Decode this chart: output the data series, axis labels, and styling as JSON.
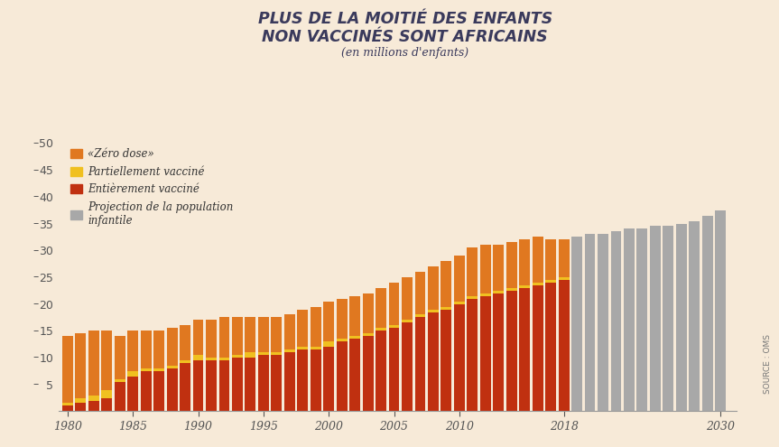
{
  "title_line1": "PLUS DE LA MOITIÉ DES ENFANTS",
  "title_line2": "NON VACCINÉS SONT AFRICAINS",
  "subtitle": "(en millions d'enfants)",
  "source": "SOURCE : OMS",
  "background_color": "#f7ead8",
  "years_historical": [
    1980,
    1981,
    1982,
    1983,
    1984,
    1985,
    1986,
    1987,
    1988,
    1989,
    1990,
    1991,
    1992,
    1993,
    1994,
    1995,
    1996,
    1997,
    1998,
    1999,
    2000,
    2001,
    2002,
    2003,
    2004,
    2005,
    2006,
    2007,
    2008,
    2009,
    2010,
    2011,
    2012,
    2013,
    2014,
    2015,
    2016,
    2017,
    2018
  ],
  "years_projection": [
    2019,
    2020,
    2021,
    2022,
    2023,
    2024,
    2025,
    2026,
    2027,
    2028,
    2029,
    2030
  ],
  "fully_vaccinated": [
    1.0,
    1.5,
    2.0,
    2.5,
    5.5,
    6.5,
    7.5,
    7.5,
    8.0,
    9.0,
    9.5,
    9.5,
    9.5,
    10.0,
    10.0,
    10.5,
    10.5,
    11.0,
    11.5,
    11.5,
    12.0,
    13.0,
    13.5,
    14.0,
    15.0,
    15.5,
    16.5,
    17.5,
    18.5,
    19.0,
    20.0,
    21.0,
    21.5,
    22.0,
    22.5,
    23.0,
    23.5,
    24.0,
    24.5
  ],
  "partially_vaccinated": [
    0.5,
    1.0,
    1.0,
    1.5,
    0.5,
    1.0,
    0.5,
    0.5,
    0.5,
    0.5,
    1.0,
    0.5,
    0.5,
    0.5,
    1.0,
    0.5,
    0.5,
    0.5,
    0.5,
    0.5,
    1.0,
    0.5,
    0.5,
    0.5,
    0.5,
    0.5,
    0.5,
    0.5,
    0.5,
    0.5,
    0.5,
    0.5,
    0.5,
    0.5,
    0.5,
    0.5,
    0.5,
    0.5,
    0.5
  ],
  "zero_dose": [
    12.5,
    12.0,
    12.0,
    11.0,
    8.0,
    7.5,
    7.0,
    7.0,
    7.0,
    6.5,
    6.5,
    7.0,
    7.5,
    7.0,
    6.5,
    6.5,
    6.5,
    6.5,
    7.0,
    7.5,
    7.5,
    7.5,
    7.5,
    7.5,
    7.5,
    8.0,
    8.0,
    8.0,
    8.0,
    8.5,
    8.5,
    9.0,
    9.0,
    8.5,
    8.5,
    8.5,
    8.5,
    7.5,
    7.0
  ],
  "projection_values": [
    32.5,
    33.0,
    33.0,
    33.5,
    34.0,
    34.0,
    34.5,
    34.5,
    35.0,
    35.5,
    36.5,
    37.5
  ],
  "color_zero_dose": "#E07820",
  "color_partially": "#F0C020",
  "color_fully": "#C03010",
  "color_projection": "#A8A8A8",
  "ylim": [
    0,
    50
  ],
  "yticks": [
    0,
    5,
    10,
    15,
    20,
    25,
    30,
    35,
    40,
    45,
    50
  ],
  "legend_labels": [
    "«Zéro dose»",
    "Partiellement vacciné",
    "Entièrement vacciné",
    "Projection de la population\ninfantile"
  ],
  "xtick_labels": [
    "1980",
    "1985",
    "1990",
    "1995",
    "2000",
    "2005",
    "2010",
    "2018",
    "2030"
  ],
  "xtick_positions": [
    1980,
    1985,
    1990,
    1995,
    2000,
    2005,
    2010,
    2018,
    2030
  ],
  "title_color": "#3a3a5c",
  "tick_color": "#555555"
}
